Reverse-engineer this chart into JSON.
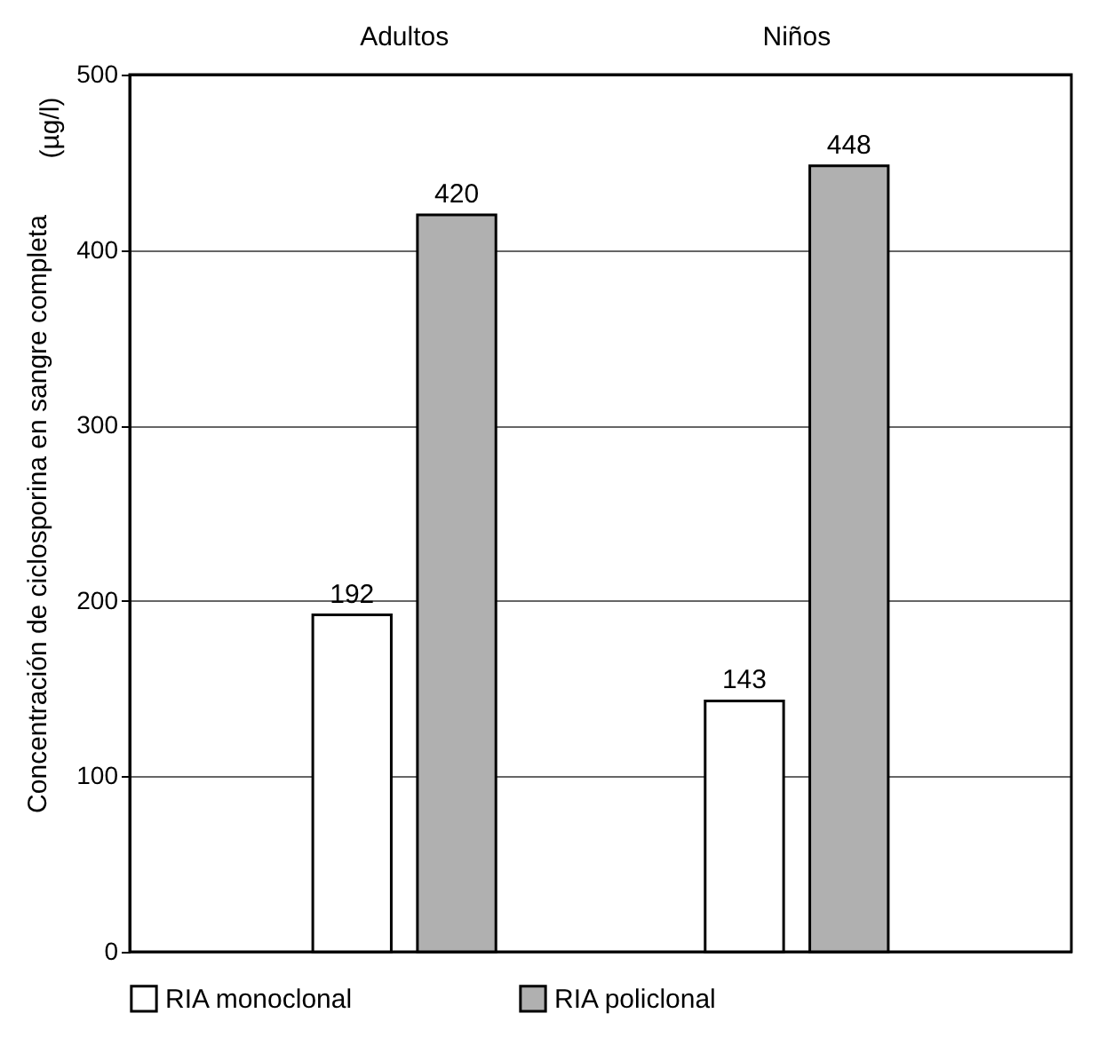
{
  "chart_data": {
    "type": "bar",
    "categories": [
      "Adultos",
      "Niños"
    ],
    "ylabel": "Concentración de ciclosporina en sangre completa",
    "annotations": [
      "(µg/l)"
    ],
    "series": [
      {
        "name": "RIA monoclonal",
        "color": "#ffffff",
        "values": [
          192,
          143
        ]
      },
      {
        "name": "RIA policlonal",
        "color": "#b0b0b0",
        "values": [
          420,
          448
        ]
      }
    ],
    "ylim": [
      0,
      500
    ],
    "yticks": [
      0,
      100,
      200,
      300,
      400,
      500
    ],
    "grid": "y",
    "legend": "bottom",
    "data_labels": true
  }
}
